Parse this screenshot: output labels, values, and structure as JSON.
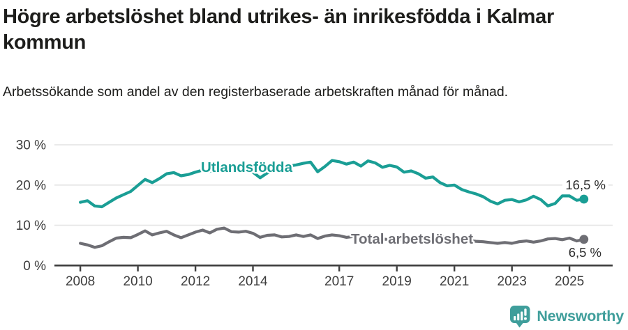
{
  "title": "Högre arbetslöshet bland utrikes- än inrikesfödda i Kalmar kommun",
  "subtitle": "Arbetssökande som andel av den registerbaserade arbetskraften månad för månad.",
  "footer": {
    "brand": "Newsworthy",
    "logo_icon": "bar-chart-speech-bubble-icon",
    "brand_color": "#3f9e9b"
  },
  "colors": {
    "foreign_born_line": "#1a9e95",
    "total_line": "#6e6e74",
    "axis": "#3d3d3d",
    "gridline": "#e3e3e3"
  },
  "chart_data": {
    "type": "line",
    "title": "Högre arbetslöshet bland utrikes- än inrikesfödda i Kalmar kommun",
    "subtitle": "Arbetssökande som andel av den registerbaserade arbetskraften månad för månad.",
    "x_unit": "decimal_year",
    "grid": "horizontal",
    "xlim": [
      2007.1,
      2026.5
    ],
    "ylim": [
      0,
      30
    ],
    "x_ticks": [
      {
        "value": 2008,
        "label": "2008"
      },
      {
        "value": 2010,
        "label": "2010"
      },
      {
        "value": 2012,
        "label": "2012"
      },
      {
        "value": 2014,
        "label": "2014"
      },
      {
        "value": 2017,
        "label": "2017"
      },
      {
        "value": 2019,
        "label": "2019"
      },
      {
        "value": 2021,
        "label": "2021"
      },
      {
        "value": 2023,
        "label": "2023"
      },
      {
        "value": 2025,
        "label": "2025"
      }
    ],
    "y_ticks": [
      {
        "value": 0,
        "label": "0 %"
      },
      {
        "value": 10,
        "label": "10 %"
      },
      {
        "value": 20,
        "label": "20 %"
      },
      {
        "value": 30,
        "label": "30 %"
      }
    ],
    "x": [
      2008.0,
      2008.25,
      2008.5,
      2008.75,
      2009.0,
      2009.25,
      2009.5,
      2009.75,
      2010.0,
      2010.25,
      2010.5,
      2010.75,
      2011.0,
      2011.25,
      2011.5,
      2011.75,
      2012.0,
      2012.25,
      2012.5,
      2012.75,
      2013.0,
      2013.25,
      2013.5,
      2013.75,
      2014.0,
      2014.25,
      2014.5,
      2014.75,
      2015.0,
      2015.25,
      2015.5,
      2015.75,
      2016.0,
      2016.25,
      2016.5,
      2016.75,
      2017.0,
      2017.25,
      2017.5,
      2017.75,
      2018.0,
      2018.25,
      2018.5,
      2018.75,
      2019.0,
      2019.25,
      2019.5,
      2019.75,
      2020.0,
      2020.25,
      2020.5,
      2020.75,
      2021.0,
      2021.25,
      2021.5,
      2021.75,
      2022.0,
      2022.25,
      2022.5,
      2022.75,
      2023.0,
      2023.25,
      2023.5,
      2023.75,
      2024.0,
      2024.25,
      2024.5,
      2024.75,
      2025.0,
      2025.25,
      2025.5
    ],
    "series": [
      {
        "name": "Utlandsfödda",
        "color": "#1a9e95",
        "end_label": "16,5 %",
        "end_value": 16.5,
        "values": [
          15.7,
          16.1,
          14.8,
          14.6,
          15.7,
          16.8,
          17.6,
          18.4,
          19.9,
          21.4,
          20.6,
          21.6,
          22.8,
          23.1,
          22.3,
          22.6,
          23.2,
          23.7,
          23.4,
          23.9,
          24.2,
          24.5,
          24.1,
          23.7,
          23.2,
          21.8,
          23.0,
          23.8,
          24.2,
          24.7,
          25.0,
          25.4,
          25.7,
          23.3,
          24.6,
          26.1,
          25.8,
          25.2,
          25.7,
          24.7,
          26.0,
          25.5,
          24.4,
          24.9,
          24.5,
          23.2,
          23.5,
          22.8,
          21.7,
          22.0,
          20.6,
          19.8,
          20.0,
          18.9,
          18.3,
          17.8,
          17.1,
          16.0,
          15.3,
          16.2,
          16.4,
          15.8,
          16.3,
          17.2,
          16.4,
          14.8,
          15.4,
          17.3,
          17.3,
          16.2,
          16.5
        ]
      },
      {
        "name": "Total arbetslöshet",
        "color": "#6e6e74",
        "end_label": "6,5 %",
        "end_value": 6.5,
        "values": [
          5.5,
          5.1,
          4.5,
          4.9,
          5.9,
          6.8,
          7.0,
          6.9,
          7.7,
          8.6,
          7.6,
          8.1,
          8.5,
          7.6,
          6.9,
          7.6,
          8.3,
          8.8,
          8.1,
          9.0,
          9.3,
          8.4,
          8.3,
          8.5,
          8.0,
          7.0,
          7.5,
          7.6,
          7.1,
          7.2,
          7.6,
          7.2,
          7.6,
          6.7,
          7.3,
          7.6,
          7.4,
          7.0,
          7.2,
          6.9,
          6.8,
          6.5,
          6.6,
          6.4,
          6.5,
          6.3,
          6.4,
          6.3,
          6.5,
          7.4,
          7.2,
          6.9,
          6.8,
          6.4,
          6.2,
          6.0,
          5.9,
          5.7,
          5.5,
          5.7,
          5.5,
          5.9,
          6.1,
          5.8,
          6.1,
          6.6,
          6.7,
          6.4,
          6.8,
          6.1,
          6.5
        ]
      }
    ]
  }
}
